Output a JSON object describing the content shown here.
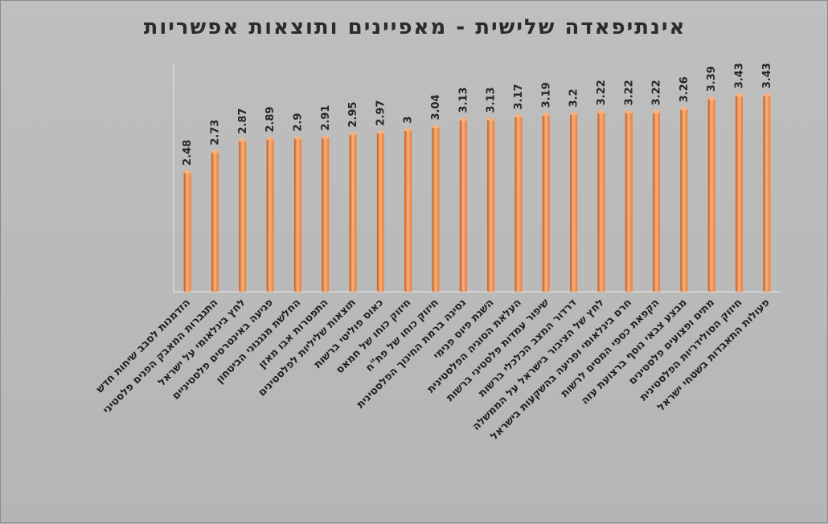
{
  "chart_data": {
    "type": "bar",
    "title": "אינתיפאדה שלישית - מאפיינים ותוצאות אפשריות",
    "categories": [
      "הזדמנות לסבב שיחות חדש",
      "התגברות המאבק הפנים פלסטיני",
      "לחץ בינלאומי על ישראל",
      "פגיעה באינטרסים פלסטיניים",
      "החלשת מנגנוני הביטחון",
      "התפטרות אבו מאזן",
      "תוצאות שליליות לפלסטינים",
      "כאוס פוליטי ברשות",
      "חיזוק כוחו של חמאס",
      "חיזוק כוחו של פת\"ח",
      "נסיגה ברמת החינוך הפלסטינית",
      "השגת פיוס פנימי",
      "העלאת הסוגיה הפלסטינית",
      "שיפור עמדות פלסטיני ברשות",
      "דרדור המצב הכלכלי ברשות",
      "לחץ של הציבור בישראל על הממשלה",
      "חרם בינלאומי ופגיעה בהשקעות בישראל",
      "הקפאת כספי המסים לרשות",
      "מבצע צבאי נוסף ברצועת עזה",
      "מתים ופצועים פלסטינים",
      "חיזוק הסולידריות הפלסטינית",
      "פעולות התאבדות בשטחי ישראל"
    ],
    "values": [
      2.48,
      2.73,
      2.87,
      2.89,
      2.9,
      2.91,
      2.95,
      2.97,
      3,
      3.04,
      3.13,
      3.13,
      3.17,
      3.19,
      3.2,
      3.22,
      3.22,
      3.22,
      3.26,
      3.39,
      3.43,
      3.43
    ],
    "ylim": [
      1,
      3.8
    ],
    "grid": false,
    "legend": "none",
    "xlabel": "",
    "ylabel": "",
    "colors": {
      "bar_main": "#ed7d31",
      "bar_light": "#f6b183",
      "bar_dark": "#c55a11",
      "plot_border": "#e8e8e8",
      "text": "#262626"
    }
  }
}
